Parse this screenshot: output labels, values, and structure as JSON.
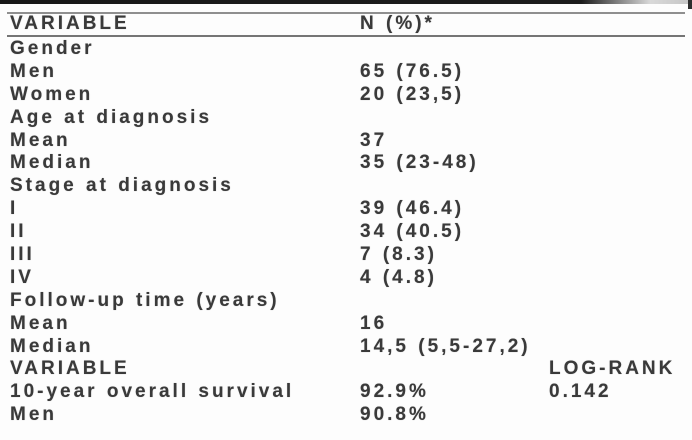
{
  "colors": {
    "text": "#3a3a3a",
    "rule_top": "#8f8f8f",
    "rule_header": "#757575",
    "top_bar": "#181818",
    "background": "#fdfdfd"
  },
  "table": {
    "header": {
      "variable": "VARIABLE",
      "n_pct": "N (%)*"
    },
    "rows": [
      {
        "label": "Gender",
        "value": "",
        "logrank": ""
      },
      {
        "label": "Men",
        "value": "65 (76.5)",
        "logrank": ""
      },
      {
        "label": "Women",
        "value": "20 (23,5)",
        "logrank": ""
      },
      {
        "label": "Age at diagnosis",
        "value": "",
        "logrank": ""
      },
      {
        "label": "Mean",
        "value": "37",
        "logrank": ""
      },
      {
        "label": "Median",
        "value": "35 (23-48)",
        "logrank": ""
      },
      {
        "label": "Stage at diagnosis",
        "value": "",
        "logrank": ""
      },
      {
        "label": "I",
        "value": "39 (46.4)",
        "logrank": ""
      },
      {
        "label": "II",
        "value": "34 (40.5)",
        "logrank": ""
      },
      {
        "label": "III",
        "value": "7 (8.3)",
        "logrank": ""
      },
      {
        "label": "IV",
        "value": "4 (4.8)",
        "logrank": ""
      },
      {
        "label": "Follow-up time (years)",
        "value": "",
        "logrank": ""
      },
      {
        "label": "Mean",
        "value": "16",
        "logrank": ""
      },
      {
        "label": "Median",
        "value": "14,5 (5,5-27,2)",
        "logrank": ""
      },
      {
        "label": "VARIABLE",
        "value": "",
        "logrank": "LOG-RANK"
      },
      {
        "label": "10-year overall survival",
        "value": "92.9%",
        "logrank": "0.142"
      },
      {
        "label": "Men",
        "value": "90.8%",
        "logrank": ""
      }
    ]
  }
}
